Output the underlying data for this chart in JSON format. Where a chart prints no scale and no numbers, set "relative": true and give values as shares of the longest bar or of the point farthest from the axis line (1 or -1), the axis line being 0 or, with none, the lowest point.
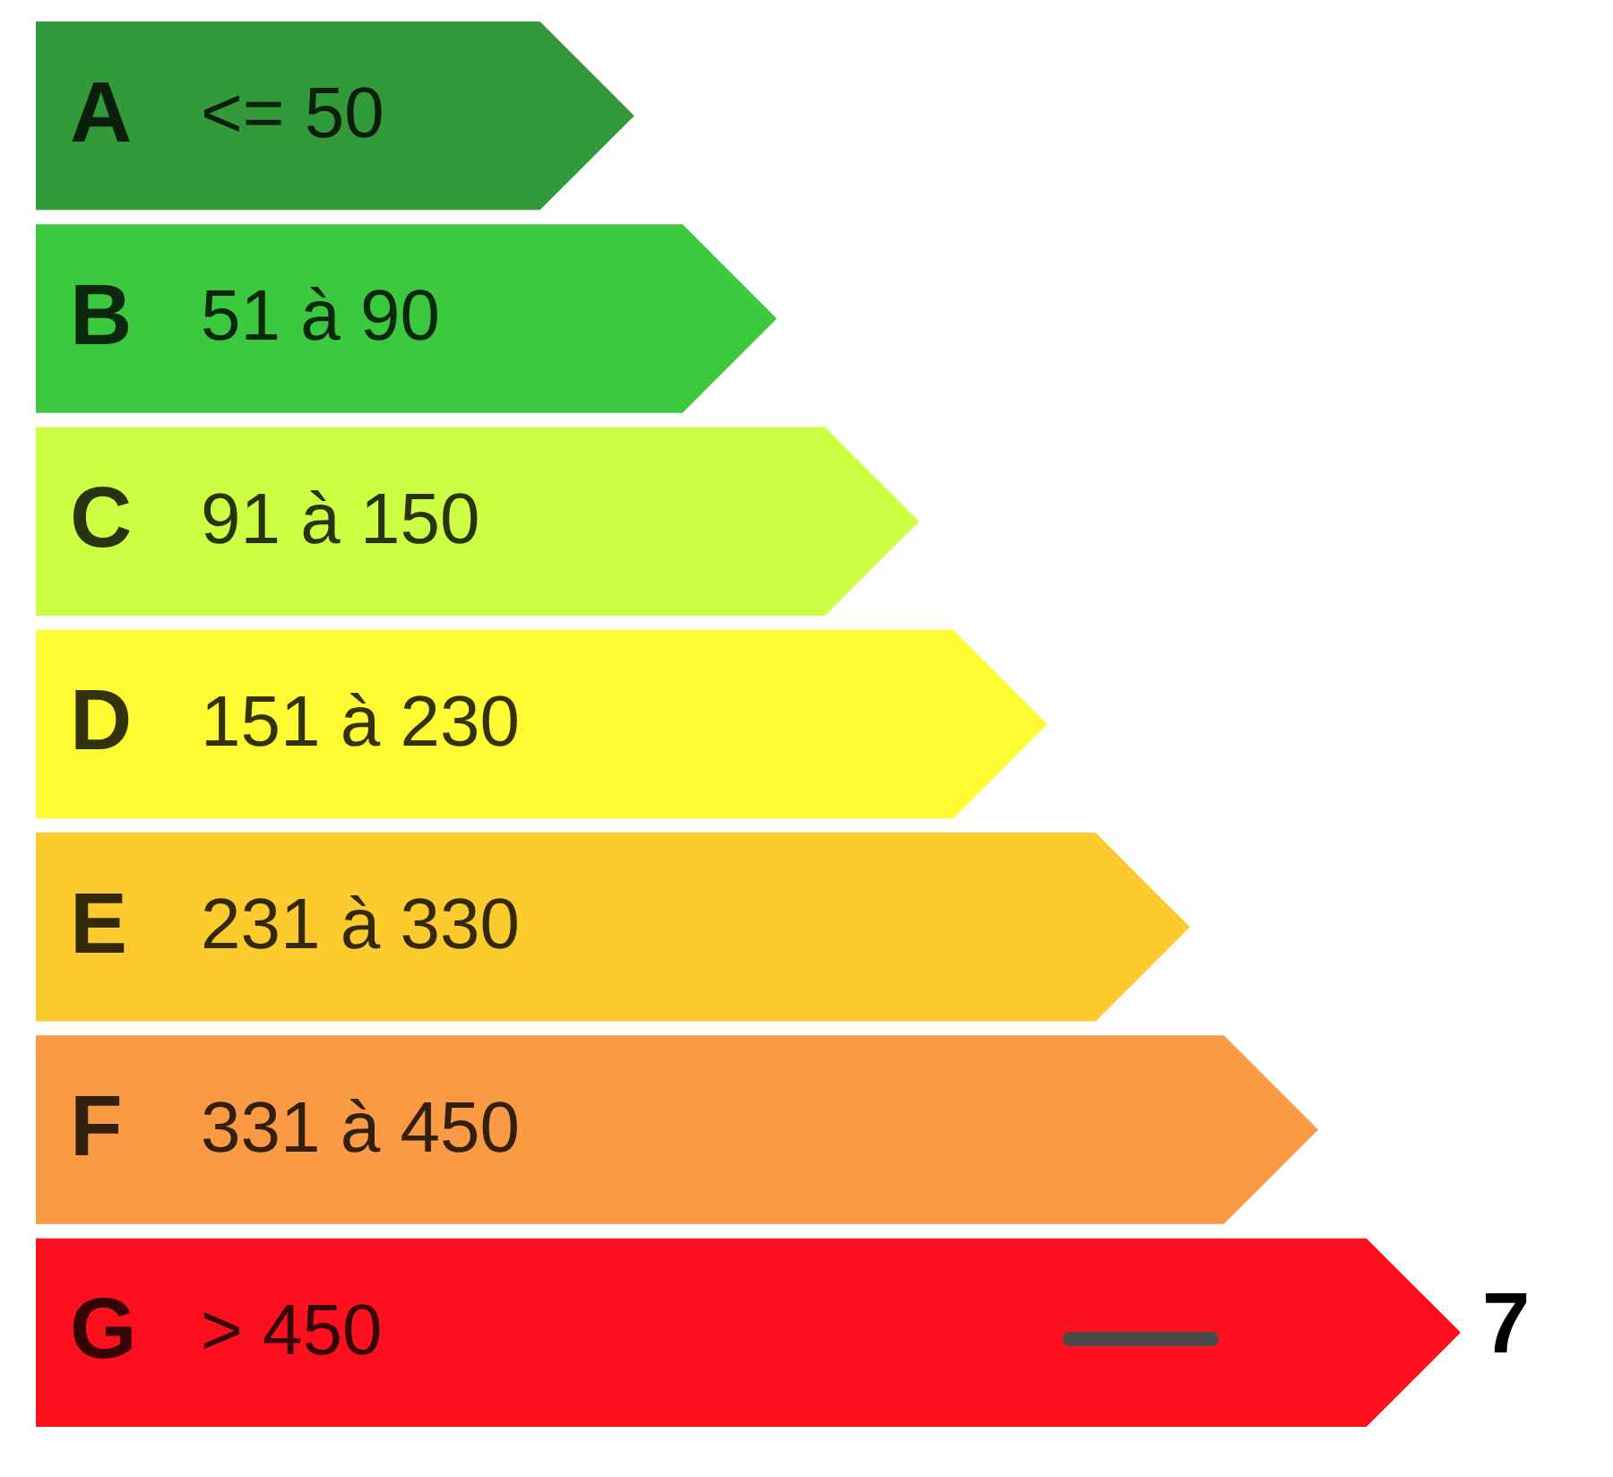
{
  "chart_data": {
    "type": "bar",
    "orientation": "horizontal",
    "relative": true,
    "categories": [
      "A",
      "B",
      "C",
      "D",
      "E",
      "F",
      "G"
    ],
    "values": [
      0.42,
      0.52,
      0.62,
      0.71,
      0.81,
      0.9,
      1
    ],
    "colors": [
      "#339a3a",
      "#3cc83f",
      "#ccff44",
      "#fffb33",
      "#fccb2e",
      "#fb9a44",
      "#fc101e"
    ],
    "annotations": [
      "<= 50",
      "51 à 90",
      "91 à 150",
      "151 à 230",
      "231 à 330",
      "331 à 450",
      "> 450",
      {
        "text": "7",
        "x": 1,
        "y": "G"
      }
    ]
  }
}
